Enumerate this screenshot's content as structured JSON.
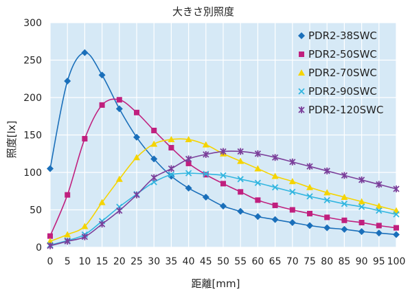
{
  "chart_data": {
    "type": "line",
    "title": "大きさ別照度",
    "xlabel": "距離[mm]",
    "ylabel": "照度[lx]",
    "x": [
      0,
      5,
      10,
      15,
      20,
      25,
      30,
      35,
      40,
      45,
      50,
      55,
      60,
      65,
      70,
      75,
      80,
      85,
      90,
      95,
      100
    ],
    "xlim": [
      0,
      100
    ],
    "ylim": [
      0,
      300
    ],
    "yticks": [
      0,
      50,
      100,
      150,
      200,
      250,
      300
    ],
    "grid": true,
    "legend_position": "top-right",
    "series": [
      {
        "name": "PDR2-38SWC",
        "color": "#1a6fba",
        "marker": "diamond",
        "values": [
          105,
          222,
          260,
          230,
          185,
          147,
          118,
          95,
          79,
          67,
          55,
          48,
          41,
          37,
          33,
          29,
          26,
          24,
          21,
          19,
          17
        ]
      },
      {
        "name": "PDR2-50SWC",
        "color": "#c0207e",
        "marker": "square",
        "values": [
          15,
          70,
          145,
          190,
          197,
          180,
          156,
          133,
          112,
          97,
          85,
          74,
          63,
          56,
          50,
          45,
          40,
          36,
          33,
          29,
          26
        ]
      },
      {
        "name": "PDR2-70SWC",
        "color": "#f5d400",
        "marker": "triangle",
        "values": [
          8,
          17,
          28,
          60,
          91,
          120,
          138,
          144,
          144,
          137,
          125,
          115,
          105,
          95,
          88,
          80,
          73,
          67,
          61,
          55,
          49
        ]
      },
      {
        "name": "PDR2-90SWC",
        "color": "#33b6e0",
        "marker": "x",
        "values": [
          3,
          9,
          17,
          35,
          54,
          71,
          87,
          97,
          99,
          98,
          96,
          91,
          86,
          80,
          74,
          68,
          63,
          58,
          54,
          49,
          44
        ]
      },
      {
        "name": "PDR2-120SWC",
        "color": "#7b3f9a",
        "marker": "star",
        "values": [
          2,
          8,
          14,
          31,
          49,
          70,
          93,
          105,
          118,
          124,
          128,
          128,
          125,
          120,
          114,
          108,
          102,
          96,
          90,
          84,
          78
        ]
      }
    ]
  }
}
